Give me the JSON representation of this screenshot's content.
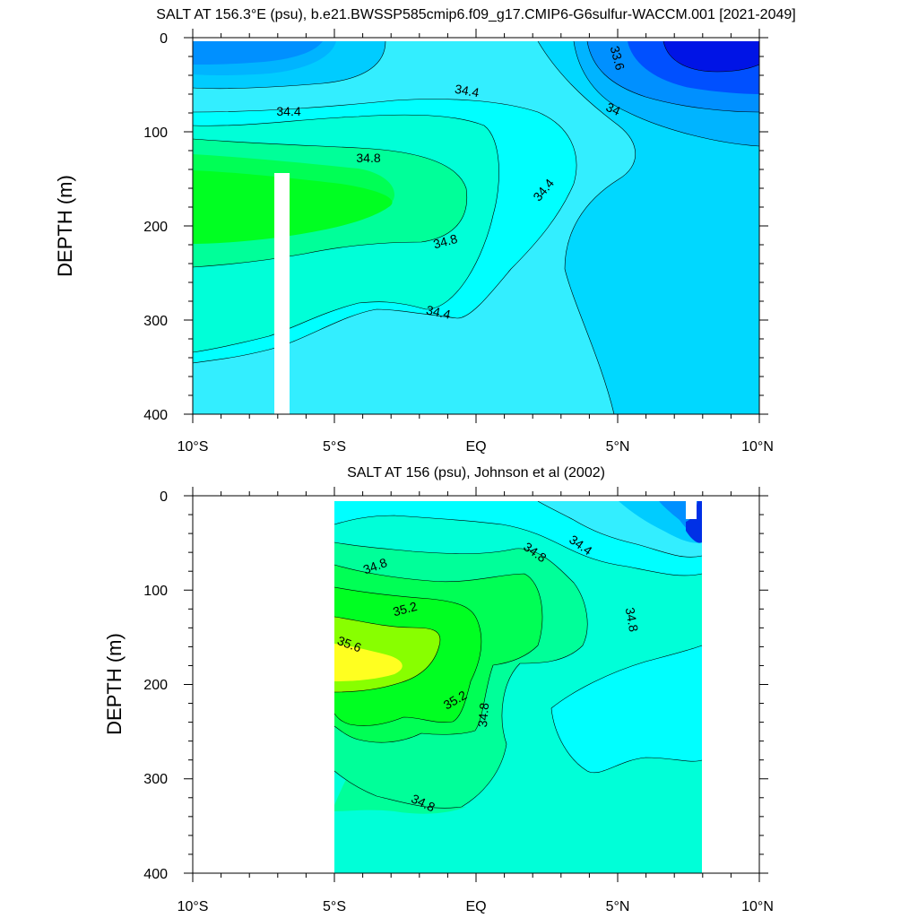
{
  "chart_data": [
    {
      "type": "heatmap",
      "title": "SALT AT 156.3°E (psu), b.e21.BWSSP585cmip6.f09_g17.CMIP6-G6sulfur-WACCM.001 [2021-2049]",
      "ylabel": "DEPTH (m)",
      "xlabel": "",
      "xlim": [
        -10,
        10
      ],
      "ylim": [
        400,
        0
      ],
      "x_tick_labels": [
        "10°S",
        "5°S",
        "EQ",
        "5°N",
        "10°N"
      ],
      "y_tick_labels": [
        "0",
        "100",
        "200",
        "300",
        "400"
      ],
      "contour_labels": [
        "34.4",
        "34.8",
        "34.8",
        "34.4",
        "34.4",
        "34.4",
        "33.6",
        "34"
      ],
      "regions": [
        {
          "salinity": 34.5,
          "color": "#33eeff"
        },
        {
          "salinity": 34.3,
          "color": "#00d8ff"
        },
        {
          "salinity": 34.0,
          "color": "#00b4ff"
        },
        {
          "salinity": 33.8,
          "color": "#0090ff"
        },
        {
          "salinity": 33.6,
          "color": "#0050ff"
        },
        {
          "salinity": 33.4,
          "color": "#0014e6"
        },
        {
          "salinity": 34.3,
          "color": "#00ccff"
        },
        {
          "salinity": 34.5,
          "color": "#00ffff"
        },
        {
          "salinity": 34.7,
          "color": "#00ffd8"
        },
        {
          "salinity": 34.9,
          "color": "#00ff99"
        },
        {
          "salinity": 35.0,
          "color": "#00ff55"
        },
        {
          "salinity": 35.1,
          "color": "#00ff22"
        }
      ]
    },
    {
      "type": "heatmap",
      "title": "SALT AT 156 (psu), Johnson et al (2002)",
      "ylabel": "DEPTH (m)",
      "xlabel": "",
      "xlim": [
        -10,
        10
      ],
      "ylim": [
        400,
        0
      ],
      "data_extent_x": [
        -5,
        8
      ],
      "x_tick_labels": [
        "10°S",
        "5°S",
        "EQ",
        "5°N",
        "10°N"
      ],
      "y_tick_labels": [
        "0",
        "100",
        "200",
        "300",
        "400"
      ],
      "contour_labels": [
        "34.8",
        "35.2",
        "35.6",
        "35.2",
        "34.8",
        "34.8",
        "34.8",
        "34.4",
        "34.8"
      ],
      "regions": [
        {
          "salinity": 34.7,
          "color": "#00ffd8"
        },
        {
          "salinity": 34.5,
          "color": "#00ffff"
        },
        {
          "salinity": 34.4,
          "color": "#33eeff"
        },
        {
          "salinity": 34.2,
          "color": "#00ccff"
        },
        {
          "salinity": 34.9,
          "color": "#00ff99"
        },
        {
          "salinity": 35.1,
          "color": "#00ff55"
        },
        {
          "salinity": 35.3,
          "color": "#00ff22"
        },
        {
          "salinity": 35.5,
          "color": "#88ff00"
        },
        {
          "salinity": 35.7,
          "color": "#ffff20"
        },
        {
          "salinity": 33.8,
          "color": "#0090ff"
        },
        {
          "salinity": 33.4,
          "color": "#0030e6"
        }
      ]
    }
  ]
}
